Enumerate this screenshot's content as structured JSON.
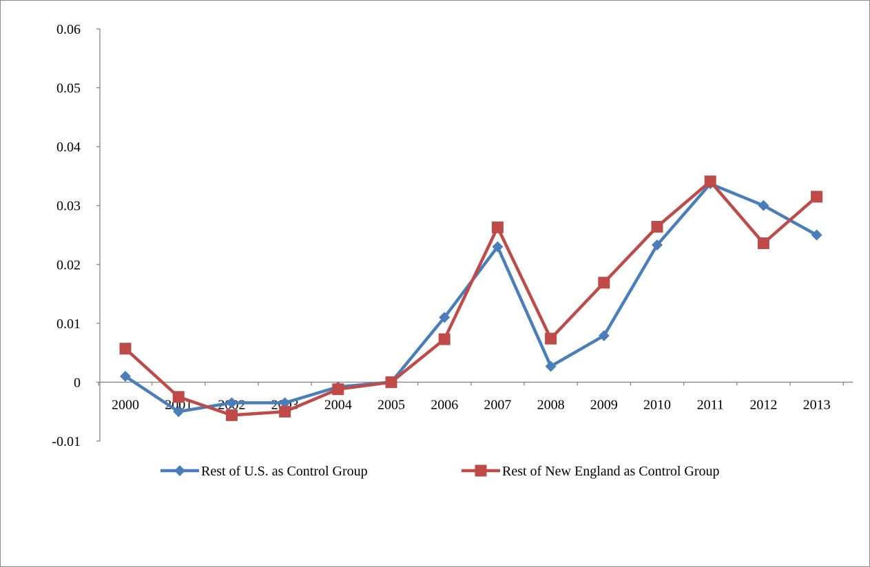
{
  "chart_data": {
    "type": "line",
    "title": "",
    "xlabel": "",
    "ylabel": "",
    "categories": [
      "2000",
      "2001",
      "2002",
      "2003",
      "2004",
      "2005",
      "2006",
      "2007",
      "2008",
      "2009",
      "2010",
      "2011",
      "2012",
      "2013"
    ],
    "ylim": [
      -0.01,
      0.06
    ],
    "yticks": [
      "-0.01",
      "0",
      "0.01",
      "0.02",
      "0.03",
      "0.04",
      "0.05",
      "0.06"
    ],
    "grid": false,
    "legend_position": "bottom",
    "series": [
      {
        "name": "Rest of U.S. as Control Group",
        "color": "#4a7ebb",
        "marker": "diamond",
        "values": [
          0.001,
          -0.005,
          -0.0035,
          -0.0035,
          -0.0008,
          0.0,
          0.011,
          0.023,
          0.0027,
          0.0079,
          0.0233,
          0.0337,
          0.03,
          0.025
        ]
      },
      {
        "name": "Rest of New England as Control Group",
        "color": "#be4b48",
        "marker": "square",
        "values": [
          0.0057,
          -0.0025,
          -0.0056,
          -0.005,
          -0.0012,
          0.0,
          0.0073,
          0.0263,
          0.0074,
          0.0169,
          0.0264,
          0.0341,
          0.0236,
          0.0315
        ]
      }
    ]
  }
}
